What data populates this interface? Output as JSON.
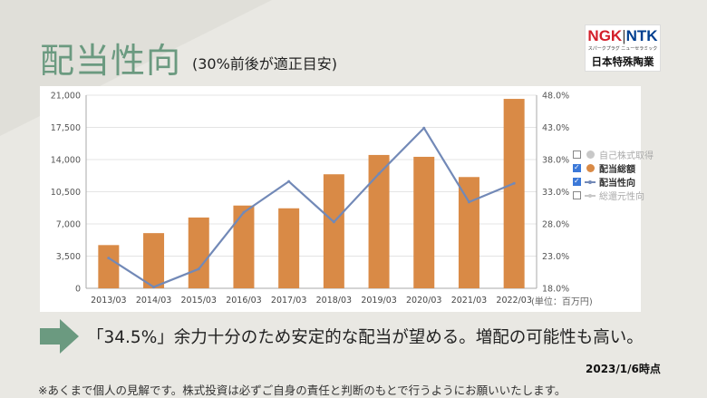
{
  "header": {
    "title": "配当性向",
    "subtitle": "(30%前後が適正目安)"
  },
  "logo": {
    "brand_left": "NGK",
    "separator": "|",
    "brand_right": "NTK",
    "tagline": "スパークプラグ ニューセラミック",
    "company": "日本特殊陶業"
  },
  "chart_data": {
    "type": "bar",
    "categories": [
      "2013/03",
      "2014/03",
      "2015/03",
      "2016/03",
      "2017/03",
      "2018/03",
      "2019/03",
      "2020/03",
      "2021/03",
      "2022/03"
    ],
    "series": [
      {
        "name": "配当総額",
        "type": "bar",
        "axis": "left",
        "color": "#d98a46",
        "values": [
          4700,
          6000,
          7700,
          9000,
          8700,
          12400,
          14500,
          14300,
          12100,
          20600
        ]
      },
      {
        "name": "配当性向",
        "type": "line",
        "axis": "right",
        "color": "#7289b7",
        "values": [
          22.7,
          18.2,
          21.0,
          29.8,
          34.6,
          28.3,
          35.8,
          42.9,
          31.4,
          34.3
        ]
      }
    ],
    "ylim": [
      0,
      21000
    ],
    "yticks": [
      0,
      3500,
      7000,
      10500,
      14000,
      17500,
      21000
    ],
    "y2lim": [
      18,
      48
    ],
    "y2ticks": [
      18,
      23,
      28,
      33,
      38,
      43,
      48
    ],
    "ytick_labels": [
      "0",
      "3,500",
      "7,000",
      "10,500",
      "14,000",
      "17,500",
      "21,000"
    ],
    "y2tick_labels": [
      "18.0%",
      "23.0%",
      "28.0%",
      "33.0%",
      "38.0%",
      "43.0%",
      "48.0%"
    ],
    "grid": true,
    "legend_position": "right",
    "legend": [
      {
        "label": "自己株式取得",
        "checked": false,
        "marker": "dot",
        "color": "#c8c8c8",
        "active": false
      },
      {
        "label": "配当総額",
        "checked": true,
        "marker": "dot",
        "color": "#d98a46",
        "active": true
      },
      {
        "label": "配当性向",
        "checked": true,
        "marker": "line",
        "color": "#7289b7",
        "active": true
      },
      {
        "label": "総還元性向",
        "checked": false,
        "marker": "line",
        "color": "#c8c8c8",
        "active": false
      }
    ],
    "unit_note": "(単位：百万円)"
  },
  "message": "「34.5%」余力十分のため安定的な配当が望める。増配の可能性も高い。",
  "date_note": "2023/1/6時点",
  "disclaimer": "※あくまで個人の見解です。株式投資は必ずご自身の責任と判断のもとで行うようにお願いいたします。",
  "colors": {
    "title": "#6b9a80",
    "arrow": "#6b9a80",
    "bar": "#d98a46",
    "line": "#7289b7",
    "background": "#e9e8e3"
  }
}
